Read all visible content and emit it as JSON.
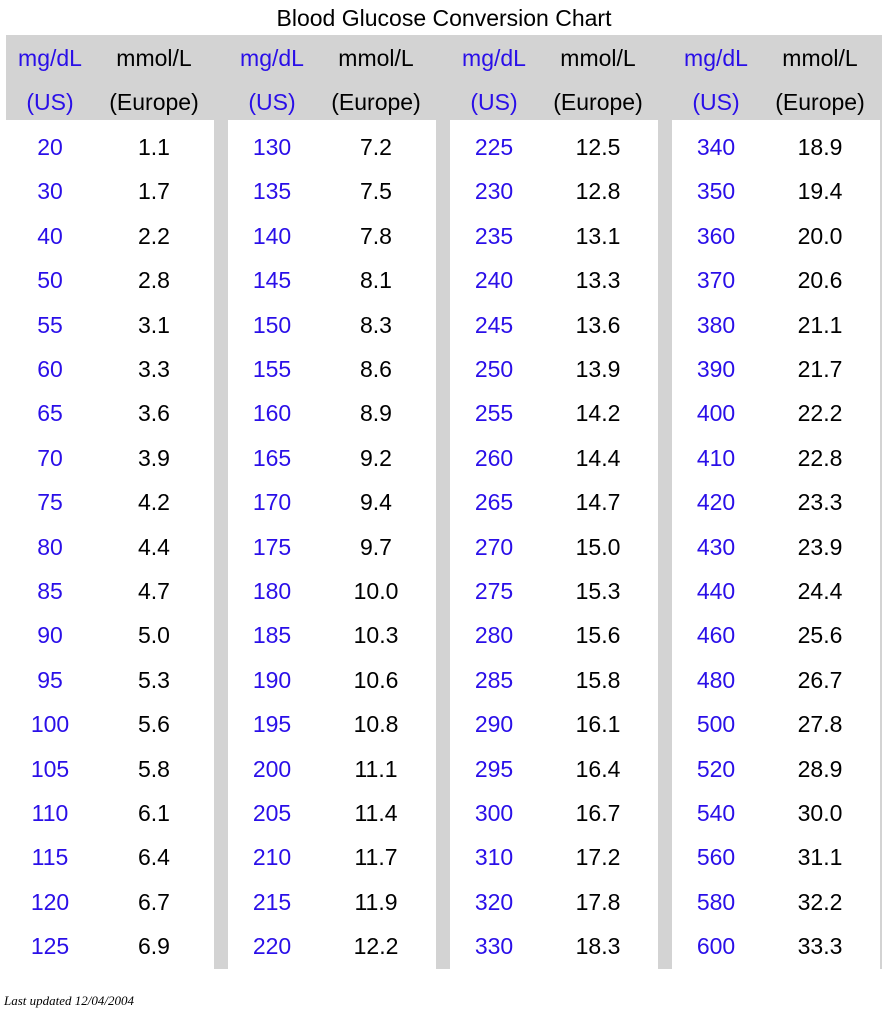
{
  "title": "Blood Glucose Conversion Chart",
  "header": {
    "mgdl_line1": "mg/dL",
    "mgdl_line2": "(US)",
    "mmol_line1": "mmol/L",
    "mmol_line2": "(Europe)"
  },
  "blocks": [
    {
      "mgdl": [
        "20",
        "30",
        "40",
        "50",
        "55",
        "60",
        "65",
        "70",
        "75",
        "80",
        "85",
        "90",
        "95",
        "100",
        "105",
        "110",
        "115",
        "120",
        "125"
      ],
      "mmol": [
        "1.1",
        "1.7",
        "2.2",
        "2.8",
        "3.1",
        "3.3",
        "3.6",
        "3.9",
        "4.2",
        "4.4",
        "4.7",
        "5.0",
        "5.3",
        "5.6",
        "5.8",
        "6.1",
        "6.4",
        "6.7",
        "6.9"
      ]
    },
    {
      "mgdl": [
        "130",
        "135",
        "140",
        "145",
        "150",
        "155",
        "160",
        "165",
        "170",
        "175",
        "180",
        "185",
        "190",
        "195",
        "200",
        "205",
        "210",
        "215",
        "220"
      ],
      "mmol": [
        "7.2",
        "7.5",
        "7.8",
        "8.1",
        "8.3",
        "8.6",
        "8.9",
        "9.2",
        "9.4",
        "9.7",
        "10.0",
        "10.3",
        "10.6",
        "10.8",
        "11.1",
        "11.4",
        "11.7",
        "11.9",
        "12.2"
      ]
    },
    {
      "mgdl": [
        "225",
        "230",
        "235",
        "240",
        "245",
        "250",
        "255",
        "260",
        "265",
        "270",
        "275",
        "280",
        "285",
        "290",
        "295",
        "300",
        "310",
        "320",
        "330"
      ],
      "mmol": [
        "12.5",
        "12.8",
        "13.1",
        "13.3",
        "13.6",
        "13.9",
        "14.2",
        "14.4",
        "14.7",
        "15.0",
        "15.3",
        "15.6",
        "15.8",
        "16.1",
        "16.4",
        "16.7",
        "17.2",
        "17.8",
        "18.3"
      ]
    },
    {
      "mgdl": [
        "340",
        "350",
        "360",
        "370",
        "380",
        "390",
        "400",
        "410",
        "420",
        "430",
        "440",
        "460",
        "480",
        "500",
        "520",
        "540",
        "560",
        "580",
        "600"
      ],
      "mmol": [
        "18.9",
        "19.4",
        "20.0",
        "20.6",
        "21.1",
        "21.7",
        "22.2",
        "22.8",
        "23.3",
        "23.9",
        "24.4",
        "25.6",
        "26.7",
        "27.8",
        "28.9",
        "30.0",
        "31.1",
        "32.2",
        "33.3"
      ]
    }
  ],
  "footer": "Last updated 12/04/2004",
  "colors": {
    "us_text": "#2a0fe8",
    "eu_text": "#000000",
    "grid": "#d3d3d3"
  }
}
